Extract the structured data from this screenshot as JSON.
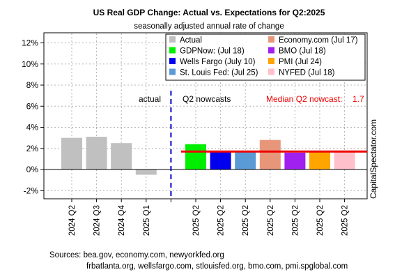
{
  "chart_data": {
    "type": "bar",
    "title": "US Real GDP Change: Actual vs. Expectations for Q2:2025",
    "subtitle": "seasonally adjusted annual rate of change",
    "xlabel": "",
    "ylabel": "",
    "ylim": [
      -3,
      12.5
    ],
    "y_ticks": [
      -2,
      0,
      2,
      4,
      6,
      8,
      10,
      12
    ],
    "y_tick_labels": [
      "-2%",
      "0%",
      "2%",
      "4%",
      "6%",
      "8%",
      "10%",
      "12%"
    ],
    "grid": true,
    "legend_position": "top-right",
    "categories": [
      "2024 Q2",
      "2024 Q3",
      "2024 Q4",
      "2025 Q1",
      "",
      "2025 Q2",
      "2025 Q2",
      "2025 Q2",
      "2025 Q2",
      "2025 Q2",
      "2025 Q2",
      "2025 Q2"
    ],
    "series": [
      {
        "name": "Actual",
        "color": "#c0c0c0",
        "values": [
          3.0,
          3.1,
          2.5,
          -0.5,
          null,
          null,
          null,
          null,
          null,
          null,
          null,
          null
        ]
      },
      {
        "name": "GDPNow: (Jul 18)",
        "color": "#00ee00",
        "values": [
          null,
          null,
          null,
          null,
          null,
          2.4,
          null,
          null,
          null,
          null,
          null,
          null
        ]
      },
      {
        "name": "Wells Fargo (July 10)",
        "color": "#0000ee",
        "values": [
          null,
          null,
          null,
          null,
          null,
          null,
          1.7,
          null,
          null,
          null,
          null,
          null
        ]
      },
      {
        "name": "St. Louis Fed: (Jul 25)",
        "color": "#5b9bd5",
        "values": [
          null,
          null,
          null,
          null,
          null,
          null,
          null,
          1.7,
          null,
          null,
          null,
          null
        ]
      },
      {
        "name": "Economy.com (Jul 17)",
        "color": "#e8967a",
        "values": [
          null,
          null,
          null,
          null,
          null,
          null,
          null,
          null,
          2.8,
          null,
          null,
          null
        ]
      },
      {
        "name": "BMO (Jul 18)",
        "color": "#a020f0",
        "values": [
          null,
          null,
          null,
          null,
          null,
          null,
          null,
          null,
          null,
          1.6,
          null,
          null
        ]
      },
      {
        "name": "PMI (Jul 24)",
        "color": "#ffa500",
        "values": [
          null,
          null,
          null,
          null,
          null,
          null,
          null,
          null,
          null,
          null,
          1.7,
          null
        ]
      },
      {
        "name": "NYFED (Jul 18)",
        "color": "#ffc0cb",
        "values": [
          null,
          null,
          null,
          null,
          null,
          null,
          null,
          null,
          null,
          null,
          null,
          1.7
        ]
      }
    ],
    "median_line": {
      "value": 1.7,
      "color": "#ee0000"
    },
    "divider_color": "#0000cc",
    "annotations": {
      "actual": "actual",
      "nowcasts": "Q2 nowcasts",
      "median": "Median Q2 nowcast:",
      "median_value": "1.7"
    },
    "side_label": "CapitalSpectator.com"
  },
  "sources": {
    "line1": "Sources: bea.gov, economy.com, newyorkfed.org",
    "line2": "frbatlanta.org, wellsfargo.com, stlouisfed.org, bmo.com, pmi.spglobal.com"
  }
}
